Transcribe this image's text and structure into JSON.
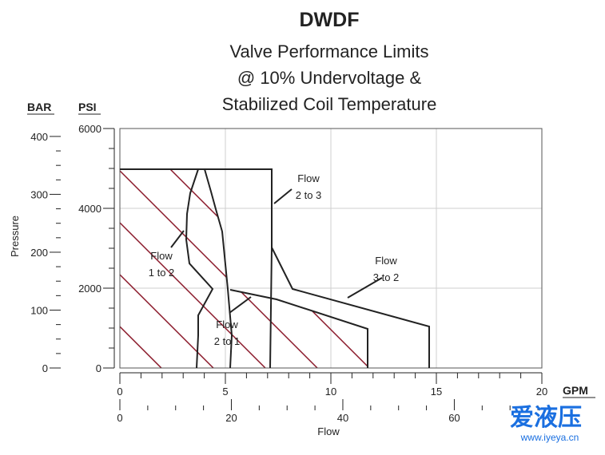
{
  "chart_data": {
    "type": "area",
    "title": "DWDF",
    "subtitle_lines": [
      "Valve Performance Limits",
      "@ 10% Undervoltage &",
      "Stabilized Coil Temperature"
    ],
    "ylabel": "Pressure",
    "xlabel": "Flow",
    "left_axis_units": {
      "bar": "BAR",
      "psi": "PSI"
    },
    "bottom_axis_units": {
      "gpm": "GPM"
    },
    "psi_ticks": [
      "6000",
      "4000",
      "2000",
      "0"
    ],
    "bar_ticks": [
      "400",
      "300",
      "200",
      "100",
      "0"
    ],
    "gpm_ticks": [
      "0",
      "5",
      "10",
      "15",
      "20"
    ],
    "lpm_ticks": [
      "0",
      "20",
      "40",
      "60"
    ],
    "xlim_gpm": [
      0,
      20
    ],
    "ylim_psi": [
      0,
      6000
    ],
    "grid": true,
    "series": [
      {
        "name": "Flow 1 to 2",
        "label_lines": [
          "Flow",
          "1 to 2"
        ],
        "boundary": [
          [
            3.7,
            5000
          ],
          [
            3.6,
            4400
          ],
          [
            3.2,
            4200
          ],
          [
            3.1,
            3400
          ],
          [
            3.3,
            2600
          ],
          [
            4.3,
            2000
          ],
          [
            3.6,
            1600
          ],
          [
            3.6,
            1000
          ],
          [
            3.5,
            0
          ]
        ],
        "hatched": true
      },
      {
        "name": "Flow 2 to 1",
        "label_lines": [
          "Flow",
          "2 to 1"
        ],
        "boundary": [
          [
            0,
            5000
          ],
          [
            4.0,
            5000
          ],
          [
            4.2,
            4600
          ],
          [
            4.4,
            4000
          ],
          [
            4.8,
            3200
          ],
          [
            5.1,
            2100
          ],
          [
            5.2,
            1200
          ],
          [
            5.1,
            0
          ]
        ],
        "region": [
          [
            5.1,
            2100
          ],
          [
            7.0,
            1800
          ],
          [
            11.7,
            1200
          ],
          [
            11.7,
            0
          ]
        ],
        "hatched": true
      },
      {
        "name": "Flow 2 to 3",
        "label_lines": [
          "Flow",
          "2 to 3"
        ],
        "boundary": [
          [
            7.2,
            5000
          ],
          [
            7.2,
            3100
          ],
          [
            7.1,
            0
          ]
        ]
      },
      {
        "name": "Flow 3 to 2",
        "label_lines": [
          "Flow",
          "3 to 2"
        ],
        "boundary": [
          [
            7.2,
            3100
          ],
          [
            8.2,
            2000
          ],
          [
            14.7,
            1100
          ],
          [
            14.7,
            0
          ]
        ]
      }
    ]
  },
  "watermark": {
    "text": "爱液压",
    "url": "www.iyeya.cn"
  },
  "colors": {
    "hatch": "#8b1a2b",
    "line": "#222222",
    "grid": "#cfcfcf"
  }
}
